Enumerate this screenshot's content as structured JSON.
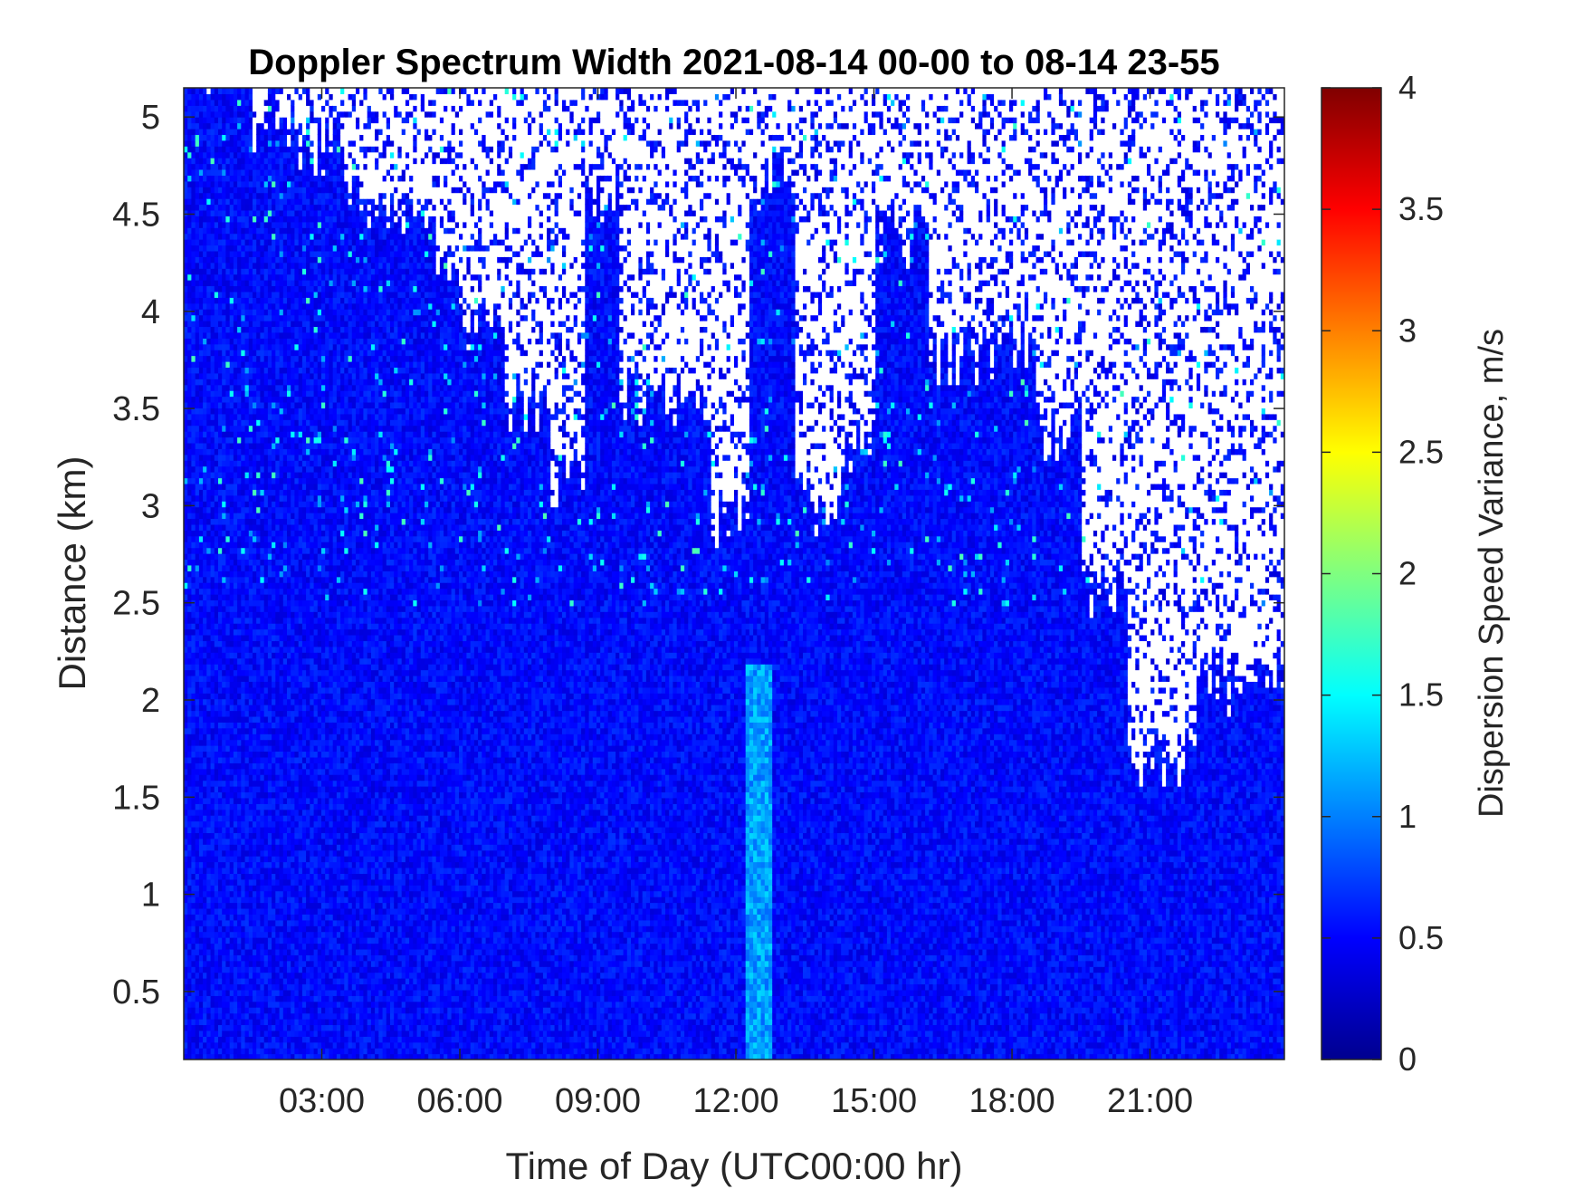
{
  "chart_data": {
    "type": "heatmap",
    "title": "Doppler Spectrum Width 2021-08-14 00-00 to 08-14 23-55",
    "xlabel": "Time of Day (UTC00:00 hr)",
    "ylabel": "Distance (km)",
    "x_ticks": [
      "03:00",
      "06:00",
      "09:00",
      "12:00",
      "15:00",
      "18:00",
      "21:00"
    ],
    "x_tick_hours": [
      3,
      6,
      9,
      12,
      15,
      18,
      21
    ],
    "xlim_hours": [
      0,
      23.92
    ],
    "y_ticks": [
      "0.5",
      "1",
      "1.5",
      "2",
      "2.5",
      "3",
      "3.5",
      "4",
      "4.5",
      "5"
    ],
    "y_tick_values": [
      0.5,
      1,
      1.5,
      2,
      2.5,
      3,
      3.5,
      4,
      4.5,
      5
    ],
    "ylim_km": [
      0.15,
      5.15
    ],
    "colorbar": {
      "label": "Dispersion Speed Variance, m/s",
      "colormap": "jet",
      "ticks": [
        "0",
        "0.5",
        "1",
        "1.5",
        "2",
        "2.5",
        "3",
        "3.5",
        "4"
      ],
      "tick_values": [
        0,
        0.5,
        1,
        1.5,
        2,
        2.5,
        3,
        3.5,
        4
      ],
      "clim": [
        0,
        4
      ]
    },
    "dominant_value_range": [
      0.3,
      0.7
    ],
    "no_data_color": "#ffffff",
    "data_gaps": "No-signal (white) regions mostly above about 3 km; enhanced width (about 1.2 m/s) near 12:30 below 2 km.",
    "grid": false
  }
}
